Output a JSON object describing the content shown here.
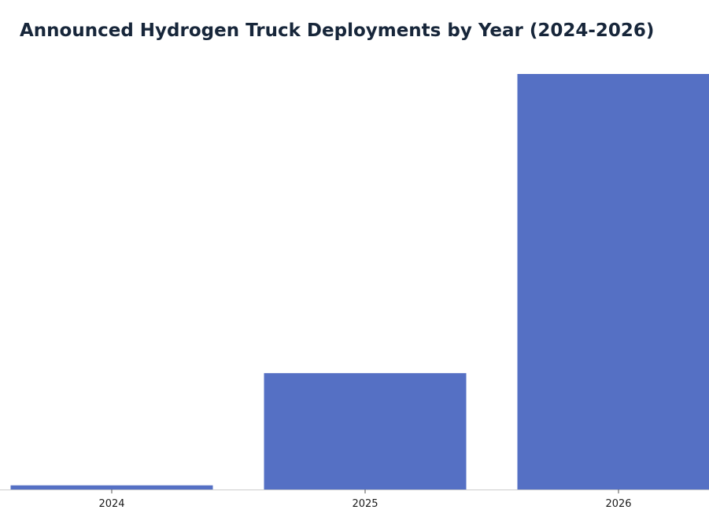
{
  "chart_data": {
    "type": "bar",
    "title": "Announced Hydrogen Truck Deployments by Year (2024-2026)",
    "categories": [
      "2024",
      "2025",
      "2026"
    ],
    "values": [
      5,
      140,
      500
    ],
    "xlabel": "",
    "ylabel": "",
    "ylim": [
      0,
      525
    ],
    "grid": false,
    "bar_color": "#5570c4",
    "axis_color": "#cccccc"
  }
}
